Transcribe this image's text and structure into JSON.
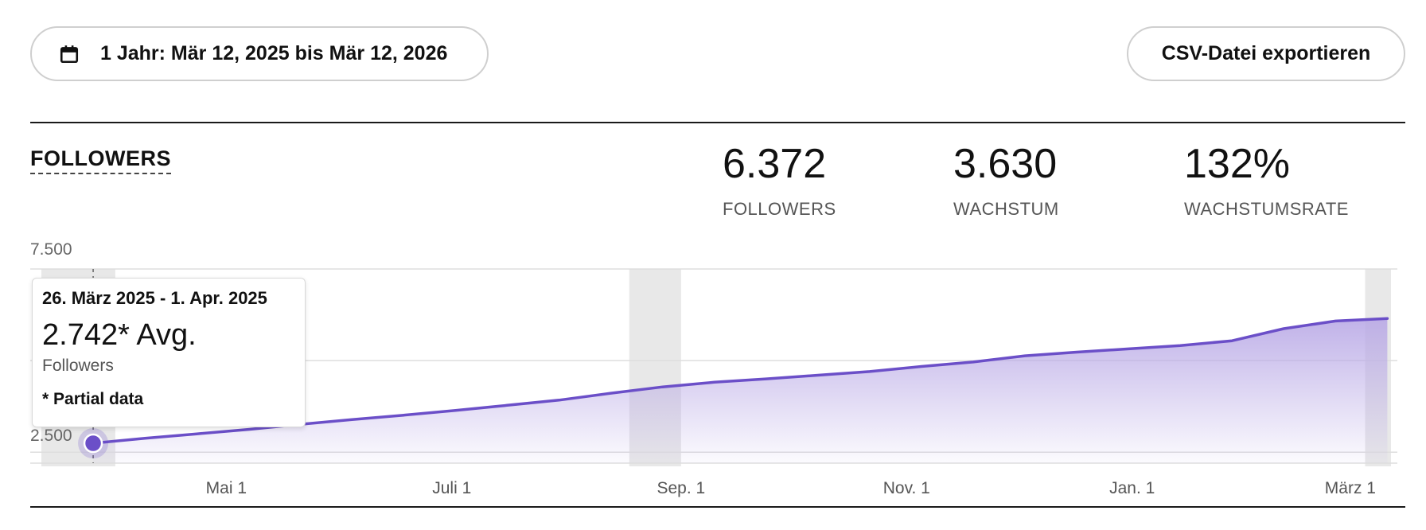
{
  "toolbar": {
    "date_range_label": "1 Jahr: Mär 12, 2025 bis Mär 12, 2026",
    "export_label": "CSV-Datei exportieren"
  },
  "section": {
    "title": "FOLLOWERS"
  },
  "stats": [
    {
      "value": "6.372",
      "caption": "FOLLOWERS"
    },
    {
      "value": "3.630",
      "caption": "WACHSTUM"
    },
    {
      "value": "132%",
      "caption": "WACHSTUMSRATE"
    }
  ],
  "tooltip": {
    "range": "26. März 2025 - 1. Apr. 2025",
    "avg": "2.742* Avg.",
    "metric": "Followers",
    "note": "* Partial data"
  },
  "chart_data": {
    "type": "area",
    "y_tick_labels": [
      "7.500",
      "2.500"
    ],
    "y_ticks": [
      7500,
      2500
    ],
    "ylim": [
      2200,
      7500
    ],
    "x_tick_labels": [
      "Mai 1",
      "Juli 1",
      "Sep. 1",
      "Nov. 1",
      "Jan. 1",
      "März 1"
    ],
    "x_tick_dates": [
      "2025-05-01",
      "2025-07-01",
      "2025-09-01",
      "2025-11-01",
      "2026-01-01",
      "2026-03-01"
    ],
    "xlim": [
      "2025-03-12",
      "2026-03-12"
    ],
    "series": [
      {
        "x": [
          "2025-03-26",
          "2025-04-09",
          "2025-04-23",
          "2025-05-07",
          "2025-05-21",
          "2025-06-04",
          "2025-06-18",
          "2025-07-02",
          "2025-07-16",
          "2025-07-30",
          "2025-08-13",
          "2025-08-27",
          "2025-09-10",
          "2025-09-24",
          "2025-10-08",
          "2025-10-22",
          "2025-11-05",
          "2025-11-19",
          "2025-12-03",
          "2025-12-17",
          "2025-12-31",
          "2026-01-14",
          "2026-01-28",
          "2026-02-11",
          "2026-02-25",
          "2026-03-11"
        ],
        "values": [
          2742,
          2880,
          3000,
          3120,
          3260,
          3390,
          3510,
          3640,
          3780,
          3920,
          4110,
          4280,
          4410,
          4500,
          4600,
          4700,
          4840,
          4960,
          5130,
          5230,
          5320,
          5410,
          5540,
          5870,
          6080,
          6150
        ]
      }
    ],
    "shaded_ranges": [
      [
        "2025-03-12",
        "2025-04-01"
      ],
      [
        "2025-08-18",
        "2025-09-01"
      ],
      [
        "2026-03-05",
        "2026-03-12"
      ]
    ],
    "highlight_point": {
      "x": "2025-03-26",
      "value": 2742
    },
    "line_color": "#6b4fc8",
    "fill_color": "#b9a9e6",
    "shade_color": "#e8e8e8",
    "grid": true
  }
}
